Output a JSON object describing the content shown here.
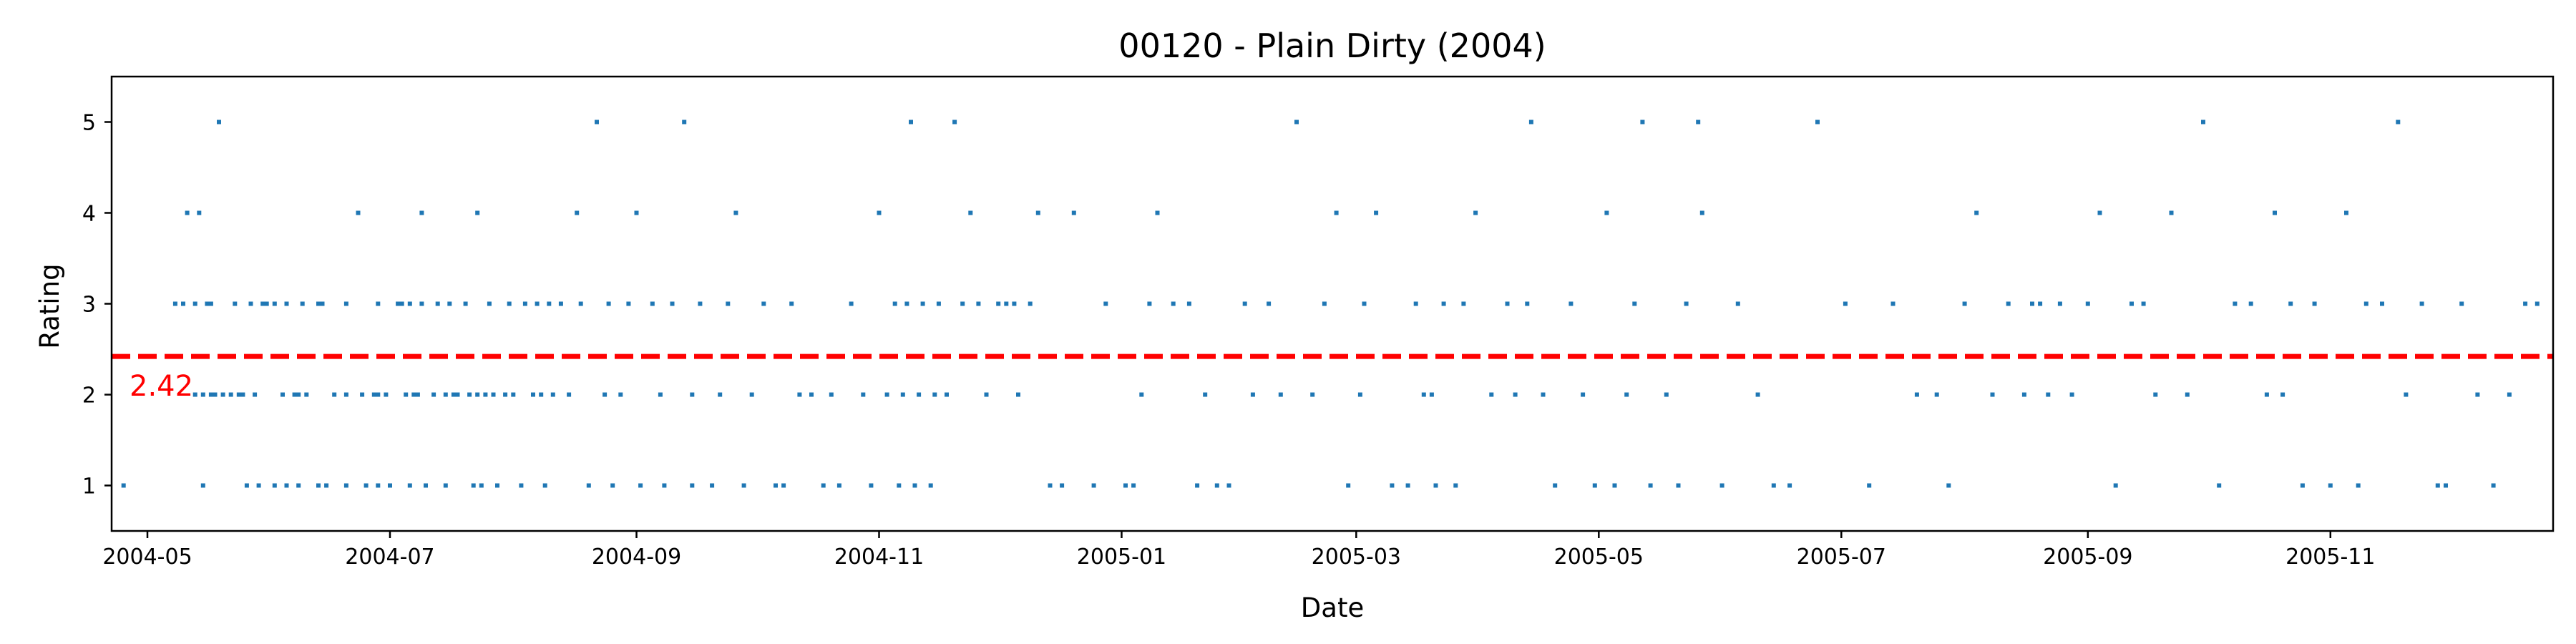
{
  "chart_data": {
    "type": "scatter",
    "title": "00120 - Plain Dirty (2004)",
    "xlabel": "Date",
    "ylabel": "Rating",
    "xlim": [
      "2004-04-22",
      "2005-12-27"
    ],
    "ylim": [
      0.5,
      5.5
    ],
    "x_ticks": [
      "2004-05",
      "2004-07",
      "2004-09",
      "2004-11",
      "2005-01",
      "2005-03",
      "2005-05",
      "2005-07",
      "2005-09",
      "2005-11"
    ],
    "y_ticks": [
      1,
      2,
      3,
      4,
      5
    ],
    "grid": false,
    "point_color": "#1f77b4",
    "mean": {
      "value": 2.42,
      "label": "2.42",
      "color": "#ff0000",
      "style": "dashed"
    },
    "points": [
      [
        "2004-04-25",
        1
      ],
      [
        "2004-05-08",
        3
      ],
      [
        "2004-05-10",
        3
      ],
      [
        "2004-05-11",
        4
      ],
      [
        "2004-05-13",
        3
      ],
      [
        "2004-05-13",
        2
      ],
      [
        "2004-05-14",
        4
      ],
      [
        "2004-05-15",
        1
      ],
      [
        "2004-05-15",
        2
      ],
      [
        "2004-05-16",
        3
      ],
      [
        "2004-05-17",
        3
      ],
      [
        "2004-05-17",
        2
      ],
      [
        "2004-05-18",
        2
      ],
      [
        "2004-05-19",
        5
      ],
      [
        "2004-05-20",
        2
      ],
      [
        "2004-05-22",
        2
      ],
      [
        "2004-05-23",
        3
      ],
      [
        "2004-05-24",
        2
      ],
      [
        "2004-05-25",
        2
      ],
      [
        "2004-05-26",
        1
      ],
      [
        "2004-05-27",
        3
      ],
      [
        "2004-05-28",
        2
      ],
      [
        "2004-05-29",
        1
      ],
      [
        "2004-05-30",
        3
      ],
      [
        "2004-05-31",
        3
      ],
      [
        "2004-06-02",
        1
      ],
      [
        "2004-06-02",
        3
      ],
      [
        "2004-06-04",
        2
      ],
      [
        "2004-06-05",
        3
      ],
      [
        "2004-06-05",
        1
      ],
      [
        "2004-06-07",
        2
      ],
      [
        "2004-06-08",
        1
      ],
      [
        "2004-06-08",
        2
      ],
      [
        "2004-06-09",
        3
      ],
      [
        "2004-06-10",
        2
      ],
      [
        "2004-06-13",
        3
      ],
      [
        "2004-06-13",
        1
      ],
      [
        "2004-06-14",
        3
      ],
      [
        "2004-06-15",
        1
      ],
      [
        "2004-06-17",
        2
      ],
      [
        "2004-06-20",
        1
      ],
      [
        "2004-06-20",
        2
      ],
      [
        "2004-06-20",
        3
      ],
      [
        "2004-06-23",
        4
      ],
      [
        "2004-06-24",
        2
      ],
      [
        "2004-06-25",
        1
      ],
      [
        "2004-06-27",
        2
      ],
      [
        "2004-06-28",
        1
      ],
      [
        "2004-06-28",
        2
      ],
      [
        "2004-06-28",
        3
      ],
      [
        "2004-06-30",
        2
      ],
      [
        "2004-07-01",
        1
      ],
      [
        "2004-07-03",
        3
      ],
      [
        "2004-07-04",
        3
      ],
      [
        "2004-07-05",
        2
      ],
      [
        "2004-07-06",
        3
      ],
      [
        "2004-07-06",
        1
      ],
      [
        "2004-07-07",
        2
      ],
      [
        "2004-07-08",
        2
      ],
      [
        "2004-07-09",
        3
      ],
      [
        "2004-07-09",
        4
      ],
      [
        "2004-07-10",
        1
      ],
      [
        "2004-07-12",
        2
      ],
      [
        "2004-07-13",
        3
      ],
      [
        "2004-07-15",
        1
      ],
      [
        "2004-07-15",
        2
      ],
      [
        "2004-07-16",
        3
      ],
      [
        "2004-07-17",
        2
      ],
      [
        "2004-07-18",
        2
      ],
      [
        "2004-07-20",
        3
      ],
      [
        "2004-07-21",
        2
      ],
      [
        "2004-07-22",
        1
      ],
      [
        "2004-07-23",
        2
      ],
      [
        "2004-07-23",
        4
      ],
      [
        "2004-07-24",
        1
      ],
      [
        "2004-07-25",
        2
      ],
      [
        "2004-07-26",
        3
      ],
      [
        "2004-07-27",
        2
      ],
      [
        "2004-07-28",
        1
      ],
      [
        "2004-07-30",
        2
      ],
      [
        "2004-07-31",
        3
      ],
      [
        "2004-08-01",
        2
      ],
      [
        "2004-08-03",
        1
      ],
      [
        "2004-08-04",
        3
      ],
      [
        "2004-08-06",
        2
      ],
      [
        "2004-08-07",
        3
      ],
      [
        "2004-08-08",
        2
      ],
      [
        "2004-08-09",
        1
      ],
      [
        "2004-08-10",
        3
      ],
      [
        "2004-08-11",
        2
      ],
      [
        "2004-08-13",
        3
      ],
      [
        "2004-08-15",
        2
      ],
      [
        "2004-08-17",
        4
      ],
      [
        "2004-08-18",
        3
      ],
      [
        "2004-08-20",
        1
      ],
      [
        "2004-08-22",
        5
      ],
      [
        "2004-08-24",
        2
      ],
      [
        "2004-08-25",
        3
      ],
      [
        "2004-08-26",
        1
      ],
      [
        "2004-08-28",
        2
      ],
      [
        "2004-08-30",
        3
      ],
      [
        "2004-09-01",
        4
      ],
      [
        "2004-09-02",
        1
      ],
      [
        "2004-09-05",
        3
      ],
      [
        "2004-09-07",
        2
      ],
      [
        "2004-09-08",
        1
      ],
      [
        "2004-09-10",
        3
      ],
      [
        "2004-09-13",
        5
      ],
      [
        "2004-09-15",
        2
      ],
      [
        "2004-09-15",
        1
      ],
      [
        "2004-09-17",
        3
      ],
      [
        "2004-09-20",
        1
      ],
      [
        "2004-09-22",
        2
      ],
      [
        "2004-09-24",
        3
      ],
      [
        "2004-09-26",
        4
      ],
      [
        "2004-09-28",
        1
      ],
      [
        "2004-09-30",
        2
      ],
      [
        "2004-10-03",
        3
      ],
      [
        "2004-10-06",
        1
      ],
      [
        "2004-10-08",
        1
      ],
      [
        "2004-10-10",
        3
      ],
      [
        "2004-10-12",
        2
      ],
      [
        "2004-10-15",
        2
      ],
      [
        "2004-10-18",
        1
      ],
      [
        "2004-10-20",
        2
      ],
      [
        "2004-10-22",
        1
      ],
      [
        "2004-10-25",
        3
      ],
      [
        "2004-10-28",
        2
      ],
      [
        "2004-10-30",
        1
      ],
      [
        "2004-11-01",
        4
      ],
      [
        "2004-11-03",
        2
      ],
      [
        "2004-11-05",
        3
      ],
      [
        "2004-11-06",
        1
      ],
      [
        "2004-11-07",
        2
      ],
      [
        "2004-11-08",
        3
      ],
      [
        "2004-11-09",
        5
      ],
      [
        "2004-11-10",
        1
      ],
      [
        "2004-11-11",
        2
      ],
      [
        "2004-11-12",
        3
      ],
      [
        "2004-11-14",
        1
      ],
      [
        "2004-11-15",
        2
      ],
      [
        "2004-11-16",
        3
      ],
      [
        "2004-11-18",
        2
      ],
      [
        "2004-11-20",
        5
      ],
      [
        "2004-11-22",
        3
      ],
      [
        "2004-11-24",
        4
      ],
      [
        "2004-11-26",
        3
      ],
      [
        "2004-11-28",
        2
      ],
      [
        "2004-12-01",
        3
      ],
      [
        "2004-12-03",
        3
      ],
      [
        "2004-12-05",
        3
      ],
      [
        "2004-12-06",
        2
      ],
      [
        "2004-12-09",
        3
      ],
      [
        "2004-12-11",
        4
      ],
      [
        "2004-12-14",
        1
      ],
      [
        "2004-12-17",
        1
      ],
      [
        "2004-12-20",
        4
      ],
      [
        "2004-12-25",
        1
      ],
      [
        "2004-12-28",
        3
      ],
      [
        "2005-01-02",
        1
      ],
      [
        "2005-01-04",
        1
      ],
      [
        "2005-01-06",
        2
      ],
      [
        "2005-01-08",
        3
      ],
      [
        "2005-01-10",
        4
      ],
      [
        "2005-01-14",
        3
      ],
      [
        "2005-01-18",
        3
      ],
      [
        "2005-01-20",
        1
      ],
      [
        "2005-01-22",
        2
      ],
      [
        "2005-01-25",
        1
      ],
      [
        "2005-01-28",
        1
      ],
      [
        "2005-02-01",
        3
      ],
      [
        "2005-02-03",
        2
      ],
      [
        "2005-02-07",
        3
      ],
      [
        "2005-02-10",
        2
      ],
      [
        "2005-02-14",
        5
      ],
      [
        "2005-02-18",
        2
      ],
      [
        "2005-02-21",
        3
      ],
      [
        "2005-02-24",
        4
      ],
      [
        "2005-02-27",
        1
      ],
      [
        "2005-03-02",
        2
      ],
      [
        "2005-03-03",
        3
      ],
      [
        "2005-03-06",
        4
      ],
      [
        "2005-03-10",
        1
      ],
      [
        "2005-03-14",
        1
      ],
      [
        "2005-03-16",
        3
      ],
      [
        "2005-03-18",
        2
      ],
      [
        "2005-03-20",
        2
      ],
      [
        "2005-03-21",
        1
      ],
      [
        "2005-03-23",
        3
      ],
      [
        "2005-03-26",
        1
      ],
      [
        "2005-03-28",
        3
      ],
      [
        "2005-03-31",
        4
      ],
      [
        "2005-04-04",
        2
      ],
      [
        "2005-04-08",
        3
      ],
      [
        "2005-04-10",
        2
      ],
      [
        "2005-04-13",
        3
      ],
      [
        "2005-04-14",
        5
      ],
      [
        "2005-04-17",
        2
      ],
      [
        "2005-04-20",
        1
      ],
      [
        "2005-04-24",
        3
      ],
      [
        "2005-04-27",
        2
      ],
      [
        "2005-04-30",
        1
      ],
      [
        "2005-05-03",
        4
      ],
      [
        "2005-05-05",
        1
      ],
      [
        "2005-05-08",
        2
      ],
      [
        "2005-05-10",
        3
      ],
      [
        "2005-05-12",
        5
      ],
      [
        "2005-05-14",
        1
      ],
      [
        "2005-05-18",
        2
      ],
      [
        "2005-05-21",
        1
      ],
      [
        "2005-05-23",
        3
      ],
      [
        "2005-05-26",
        5
      ],
      [
        "2005-05-27",
        4
      ],
      [
        "2005-06-01",
        1
      ],
      [
        "2005-06-05",
        3
      ],
      [
        "2005-06-10",
        2
      ],
      [
        "2005-06-14",
        1
      ],
      [
        "2005-06-18",
        1
      ],
      [
        "2005-06-25",
        5
      ],
      [
        "2005-07-02",
        3
      ],
      [
        "2005-07-08",
        1
      ],
      [
        "2005-07-14",
        3
      ],
      [
        "2005-07-20",
        2
      ],
      [
        "2005-07-25",
        2
      ],
      [
        "2005-07-28",
        1
      ],
      [
        "2005-08-01",
        3
      ],
      [
        "2005-08-04",
        4
      ],
      [
        "2005-08-08",
        2
      ],
      [
        "2005-08-12",
        3
      ],
      [
        "2005-08-16",
        2
      ],
      [
        "2005-08-18",
        3
      ],
      [
        "2005-08-20",
        3
      ],
      [
        "2005-08-22",
        2
      ],
      [
        "2005-08-25",
        3
      ],
      [
        "2005-08-28",
        2
      ],
      [
        "2005-09-01",
        3
      ],
      [
        "2005-09-04",
        4
      ],
      [
        "2005-09-08",
        1
      ],
      [
        "2005-09-12",
        3
      ],
      [
        "2005-09-15",
        3
      ],
      [
        "2005-09-18",
        2
      ],
      [
        "2005-09-22",
        4
      ],
      [
        "2005-09-26",
        2
      ],
      [
        "2005-09-30",
        5
      ],
      [
        "2005-10-04",
        1
      ],
      [
        "2005-10-08",
        3
      ],
      [
        "2005-10-12",
        3
      ],
      [
        "2005-10-16",
        2
      ],
      [
        "2005-10-18",
        4
      ],
      [
        "2005-10-20",
        2
      ],
      [
        "2005-10-22",
        3
      ],
      [
        "2005-10-25",
        1
      ],
      [
        "2005-10-28",
        3
      ],
      [
        "2005-11-01",
        1
      ],
      [
        "2005-11-05",
        4
      ],
      [
        "2005-11-08",
        1
      ],
      [
        "2005-11-10",
        3
      ],
      [
        "2005-11-14",
        3
      ],
      [
        "2005-11-18",
        5
      ],
      [
        "2005-11-20",
        2
      ],
      [
        "2005-11-24",
        3
      ],
      [
        "2005-11-28",
        1
      ],
      [
        "2005-11-30",
        1
      ],
      [
        "2005-12-04",
        3
      ],
      [
        "2005-12-08",
        2
      ],
      [
        "2005-12-12",
        1
      ],
      [
        "2005-12-16",
        2
      ],
      [
        "2005-12-20",
        3
      ],
      [
        "2005-12-23",
        3
      ]
    ]
  }
}
